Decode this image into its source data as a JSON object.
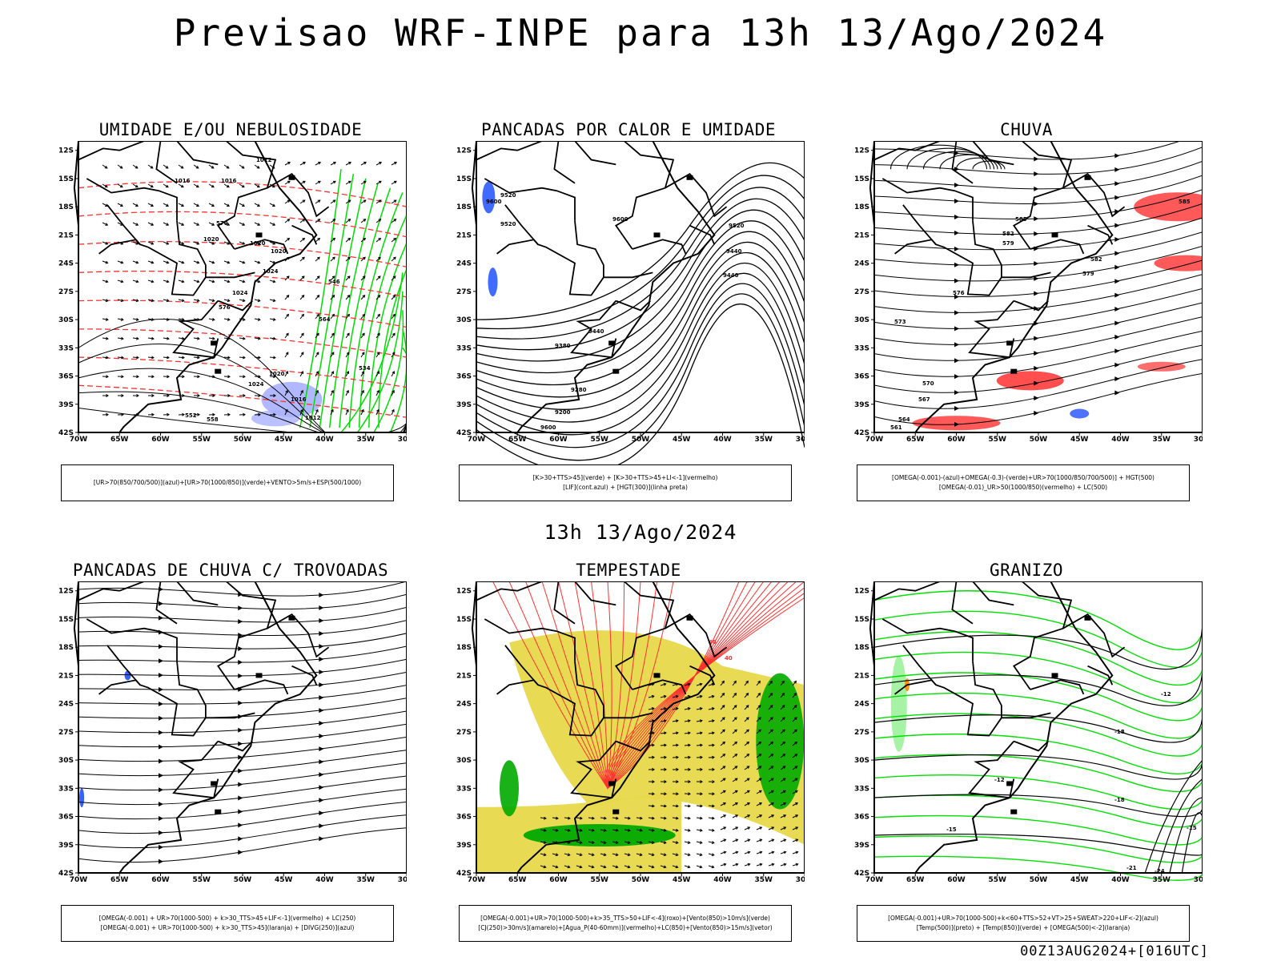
{
  "header": {
    "title": "Previsao WRF-INPE  para 13h 13/Ago/2024"
  },
  "mid_title": "13h 13/Ago/2024",
  "footer": "00Z13AUG2024+[016UTC]",
  "axes": {
    "lat_labels": [
      "12S",
      "15S",
      "18S",
      "21S",
      "24S",
      "27S",
      "30S",
      "33S",
      "36S",
      "39S",
      "42S"
    ],
    "lon_labels": [
      "70W",
      "65W",
      "60W",
      "55W",
      "50W",
      "45W",
      "40W",
      "35W",
      "30W"
    ]
  },
  "colors": {
    "red": "#ff3030",
    "green": "#00dd00",
    "blue": "#2050ff",
    "yellow": "#e8d84a",
    "lavender": "#aab0ff",
    "darkgreen": "#00aa00",
    "orange": "#ff8800"
  },
  "panels": [
    {
      "id": "umidade",
      "title": "UMIDADE E/OU NEBULOSIDADE",
      "legend": [
        "[UR>70(850/700/500)](azul)+[UR>70(1000/850)](verde)+VENTO>5m/s+ESP(500/1000)"
      ],
      "contour_labels": [
        "1016",
        "1016",
        "1012",
        "1020",
        "1020",
        "1020",
        "1024",
        "1024",
        "1024",
        "1020",
        "1016",
        "1012",
        "552",
        "558",
        "570",
        "576",
        "564",
        "546",
        "534"
      ]
    },
    {
      "id": "pancadas-calor",
      "title": "PANCADAS POR CALOR E UMIDADE",
      "legend": [
        "[K>30+TTS>45](verde) + [K>30+TTS>45+LI<-1](vermelho)",
        "[LIF](cont.azul) + [HGT(300)](linha preta)"
      ],
      "contour_labels": [
        "9600",
        "9520",
        "9600",
        "9520",
        "9440",
        "9440",
        "9440",
        "9380",
        "9280",
        "9200",
        "9600",
        "9520"
      ]
    },
    {
      "id": "chuva",
      "title": "CHUVA",
      "legend": [
        "[OMEGA(-0.001)-(azul)+OMEGA(-0.3)-(verde)+UR>70(1000/850/700/500)] + HGT(500)",
        "[OMEGA(-0.01)_UR>50(1000/850)(vermelho) + LC(500)"
      ],
      "contour_labels": [
        "585",
        "582",
        "579",
        "576",
        "573",
        "570",
        "567",
        "564",
        "561",
        "585",
        "582",
        "579"
      ]
    },
    {
      "id": "pancadas-trovoadas",
      "title": "PANCADAS DE CHUVA C/ TROVOADAS",
      "legend": [
        "[OMEGA(-0.001) + UR>70(1000-500) + k>30_TTS>45+LIF<-1](vermelho) + LC(250)",
        "[OMEGA(-0.001) + UR>70(1000-500) + k>30_TTS>45](laranja) + [DIVG(250)](azul)"
      ],
      "contour_labels": []
    },
    {
      "id": "tempestade",
      "title": "TEMPESTADE",
      "legend": [
        "[OMEGA(-0.001)+UR>70(1000-500)+k>35_TTS>50+LIF<-4](roxo)+[Vento(850)>10m/s](verde)",
        "[CJ(250)>30m/s](amarelo)+[Agua_P(40-60mm)](vermelho)+LC(850)+[Vento(850)>15m/s](vetor)"
      ],
      "contour_labels": [
        "40",
        "40"
      ]
    },
    {
      "id": "granizo",
      "title": "GRANIZO",
      "legend": [
        "[OMEGA(-0.001)+UR>70(1000-500)+k<60+TTS>52+VT>25+SWEAT>220+LIF<-2](azul)",
        "[Temp(500)](preto) + [Temp(850)](verde) + [OMEGA(500)<-2](laranja)"
      ],
      "contour_labels": [
        "-12",
        "-12",
        "-15",
        "-18",
        "-18",
        "-15",
        "-21",
        "-24"
      ]
    }
  ]
}
